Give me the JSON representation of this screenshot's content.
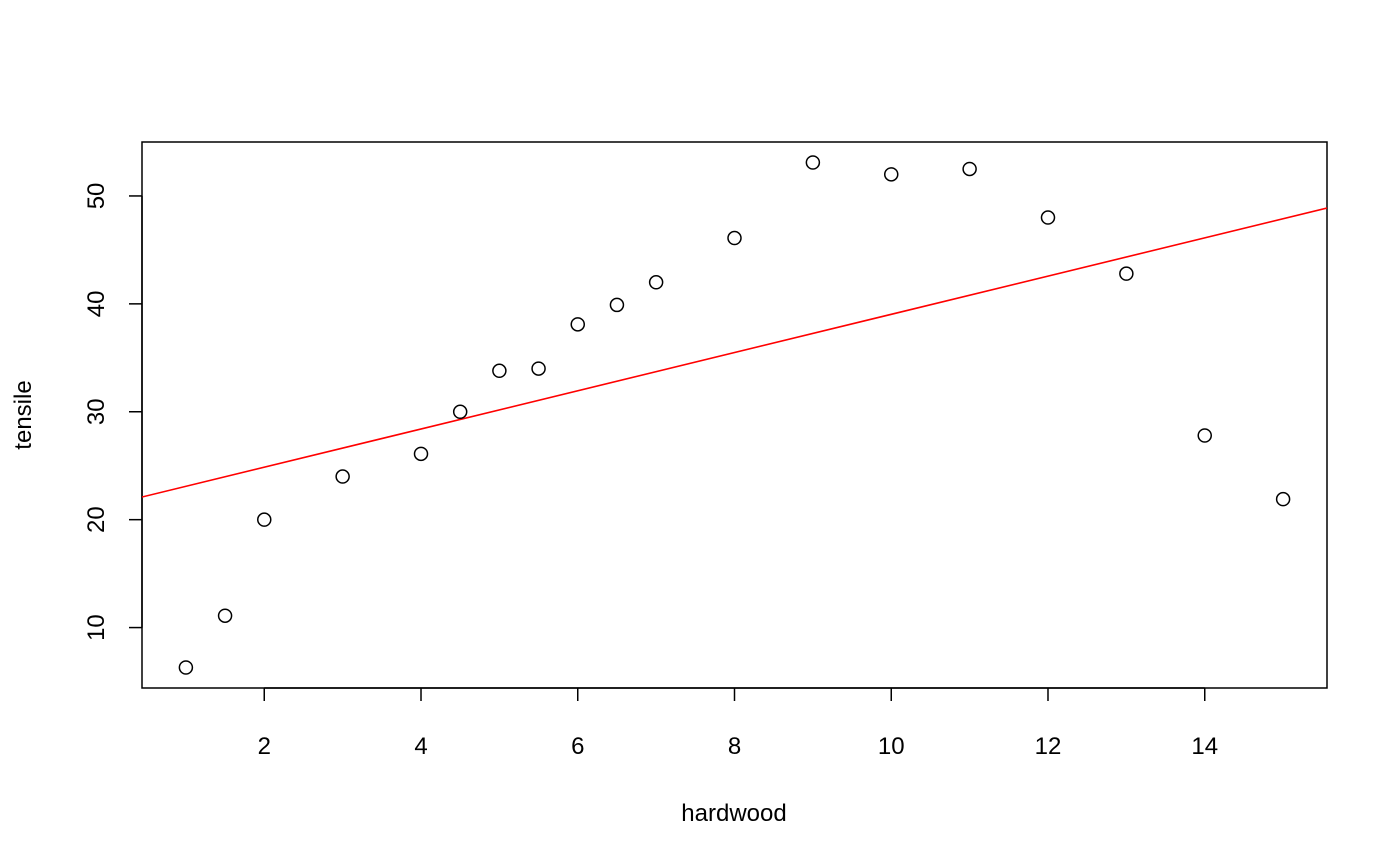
{
  "chart_data": {
    "type": "scatter",
    "title": "",
    "xlabel": "hardwood",
    "ylabel": "tensile",
    "xlim": [
      0.44,
      15.56
    ],
    "ylim": [
      4.4,
      55.0
    ],
    "x_ticks": [
      2,
      4,
      6,
      8,
      10,
      12,
      14
    ],
    "y_ticks": [
      10,
      20,
      30,
      40,
      50
    ],
    "grid": false,
    "legend": "none",
    "series": [
      {
        "type": "scatter",
        "marker": "open-circle",
        "color": "#000000",
        "points": [
          {
            "x": 1,
            "y": 6.3
          },
          {
            "x": 1.5,
            "y": 11.1
          },
          {
            "x": 2,
            "y": 20.0
          },
          {
            "x": 3,
            "y": 24.0
          },
          {
            "x": 4,
            "y": 26.1
          },
          {
            "x": 4.5,
            "y": 30.0
          },
          {
            "x": 5,
            "y": 33.8
          },
          {
            "x": 5.5,
            "y": 34.0
          },
          {
            "x": 6,
            "y": 38.1
          },
          {
            "x": 6.5,
            "y": 39.9
          },
          {
            "x": 7,
            "y": 42.0
          },
          {
            "x": 8,
            "y": 46.1
          },
          {
            "x": 9,
            "y": 53.1
          },
          {
            "x": 10,
            "y": 52.0
          },
          {
            "x": 11,
            "y": 52.5
          },
          {
            "x": 12,
            "y": 48.0
          },
          {
            "x": 13,
            "y": 42.8
          },
          {
            "x": 14,
            "y": 27.8
          },
          {
            "x": 15,
            "y": 21.9
          }
        ]
      },
      {
        "type": "line",
        "color": "#ff0000",
        "intercept": 21.32,
        "slope": 1.771
      }
    ]
  }
}
